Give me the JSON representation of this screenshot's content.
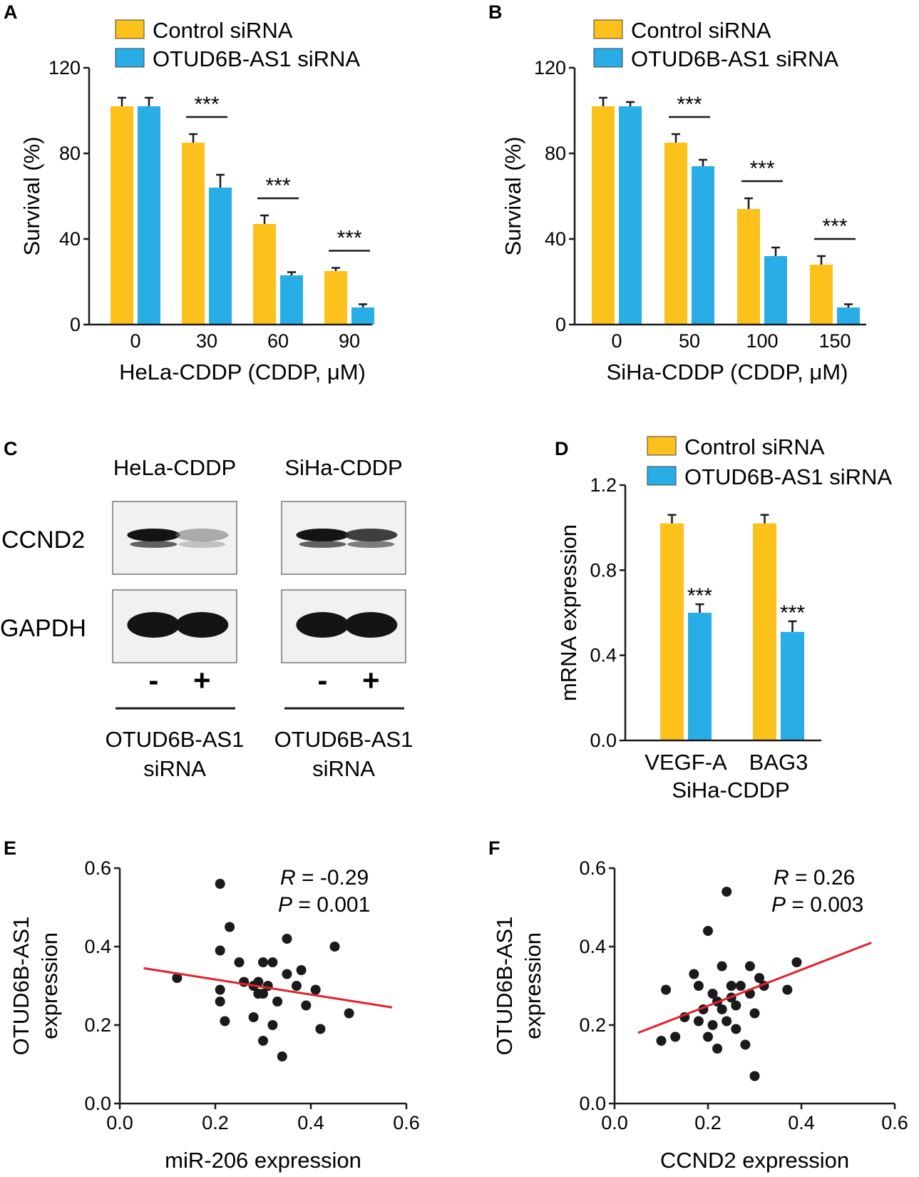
{
  "colors": {
    "control": "#fcc11a",
    "knockdown": "#28ade6",
    "fit_line": "#e3212c",
    "point": "#1a1a1a"
  },
  "chart_data": [
    {
      "panel": "A",
      "type": "bar",
      "categories": [
        "0",
        "30",
        "60",
        "90"
      ],
      "series": [
        {
          "name": "Control siRNA",
          "values": [
            102,
            85,
            47,
            25
          ],
          "errors": [
            4,
            4,
            4,
            1.5
          ]
        },
        {
          "name": "OTUD6B-AS1 siRNA",
          "values": [
            102,
            64,
            23,
            8
          ],
          "errors": [
            4,
            6,
            1.5,
            1.5
          ]
        }
      ],
      "significance": [
        "",
        "***",
        "***",
        "***"
      ],
      "xlabel": "HeLa-CDDP (CDDP, μM)",
      "ylabel": "Survival (%)",
      "ylim": [
        0,
        120
      ],
      "yticks": [
        "0",
        "40",
        "80",
        "120"
      ]
    },
    {
      "panel": "B",
      "type": "bar",
      "categories": [
        "0",
        "50",
        "100",
        "150"
      ],
      "series": [
        {
          "name": "Control siRNA",
          "values": [
            102,
            85,
            54,
            28
          ],
          "errors": [
            4,
            4,
            5,
            4
          ]
        },
        {
          "name": "OTUD6B-AS1 siRNA",
          "values": [
            102,
            74,
            32,
            8
          ],
          "errors": [
            2,
            3,
            4,
            1.5
          ]
        }
      ],
      "significance": [
        "",
        "***",
        "***",
        "***"
      ],
      "xlabel": "SiHa-CDDP (CDDP, μM)",
      "ylabel": "Survival (%)",
      "ylim": [
        0,
        120
      ],
      "yticks": [
        "0",
        "40",
        "80",
        "120"
      ]
    },
    {
      "panel": "D",
      "type": "bar",
      "categories": [
        "VEGF-A",
        "BAG3"
      ],
      "series": [
        {
          "name": "Control siRNA",
          "values": [
            1.02,
            1.02
          ],
          "errors": [
            0.04,
            0.04
          ]
        },
        {
          "name": "OTUD6B-AS1 siRNA",
          "values": [
            0.6,
            0.51
          ],
          "errors": [
            0.04,
            0.05
          ]
        }
      ],
      "significance": [
        "***",
        "***"
      ],
      "xlabel": "SiHa-CDDP",
      "ylabel": "mRNA expression",
      "ylim": [
        0,
        1.2
      ],
      "yticks": [
        "0.0",
        "0.4",
        "0.8",
        "1.2"
      ]
    },
    {
      "panel": "E",
      "type": "scatter",
      "points": [
        [
          0.12,
          0.32
        ],
        [
          0.21,
          0.56
        ],
        [
          0.21,
          0.39
        ],
        [
          0.21,
          0.29
        ],
        [
          0.21,
          0.26
        ],
        [
          0.23,
          0.45
        ],
        [
          0.22,
          0.21
        ],
        [
          0.25,
          0.36
        ],
        [
          0.26,
          0.31
        ],
        [
          0.28,
          0.3
        ],
        [
          0.28,
          0.22
        ],
        [
          0.29,
          0.28
        ],
        [
          0.29,
          0.31
        ],
        [
          0.3,
          0.36
        ],
        [
          0.3,
          0.28
        ],
        [
          0.3,
          0.16
        ],
        [
          0.31,
          0.3
        ],
        [
          0.32,
          0.2
        ],
        [
          0.32,
          0.36
        ],
        [
          0.33,
          0.26
        ],
        [
          0.34,
          0.12
        ],
        [
          0.35,
          0.42
        ],
        [
          0.35,
          0.33
        ],
        [
          0.37,
          0.3
        ],
        [
          0.38,
          0.34
        ],
        [
          0.39,
          0.25
        ],
        [
          0.41,
          0.29
        ],
        [
          0.42,
          0.19
        ],
        [
          0.45,
          0.4
        ],
        [
          0.48,
          0.23
        ]
      ],
      "fit": {
        "x": [
          0.05,
          0.57
        ],
        "y": [
          0.345,
          0.245
        ]
      },
      "annotation": {
        "r_label": "R",
        "r_value": " = -0.29",
        "p_label": "P",
        "p_value": " = 0.001"
      },
      "xlabel": "miR-206 expression",
      "ylabel_line1": "OTUD6B-AS1",
      "ylabel_line2": "expression",
      "xlim": [
        0,
        0.6
      ],
      "ylim": [
        0,
        0.6
      ],
      "xticks": [
        "0.0",
        "0.2",
        "0.4",
        "0.6"
      ],
      "yticks": [
        "0.0",
        "0.2",
        "0.4",
        "0.6"
      ]
    },
    {
      "panel": "F",
      "type": "scatter",
      "points": [
        [
          0.1,
          0.16
        ],
        [
          0.11,
          0.29
        ],
        [
          0.13,
          0.17
        ],
        [
          0.15,
          0.22
        ],
        [
          0.17,
          0.33
        ],
        [
          0.18,
          0.3
        ],
        [
          0.18,
          0.21
        ],
        [
          0.19,
          0.24
        ],
        [
          0.2,
          0.44
        ],
        [
          0.2,
          0.17
        ],
        [
          0.21,
          0.28
        ],
        [
          0.21,
          0.2
        ],
        [
          0.22,
          0.14
        ],
        [
          0.22,
          0.26
        ],
        [
          0.23,
          0.35
        ],
        [
          0.23,
          0.24
        ],
        [
          0.24,
          0.54
        ],
        [
          0.24,
          0.21
        ],
        [
          0.25,
          0.3
        ],
        [
          0.25,
          0.27
        ],
        [
          0.26,
          0.25
        ],
        [
          0.26,
          0.19
        ],
        [
          0.27,
          0.3
        ],
        [
          0.28,
          0.15
        ],
        [
          0.29,
          0.35
        ],
        [
          0.29,
          0.28
        ],
        [
          0.3,
          0.23
        ],
        [
          0.3,
          0.07
        ],
        [
          0.31,
          0.32
        ],
        [
          0.32,
          0.3
        ],
        [
          0.37,
          0.29
        ],
        [
          0.39,
          0.36
        ]
      ],
      "fit": {
        "x": [
          0.05,
          0.55
        ],
        "y": [
          0.18,
          0.41
        ]
      },
      "annotation": {
        "r_label": "R",
        "r_value": " = 0.26",
        "p_label": "P",
        "p_value": " = 0.003"
      },
      "xlabel": "CCND2 expression",
      "ylabel_line1": "OTUD6B-AS1",
      "ylabel_line2": "expression",
      "xlim": [
        0,
        0.6
      ],
      "ylim": [
        0,
        0.6
      ],
      "xticks": [
        "0.0",
        "0.2",
        "0.4",
        "0.6"
      ],
      "yticks": [
        "0.0",
        "0.2",
        "0.4",
        "0.6"
      ]
    }
  ],
  "western_blot": {
    "panel": "C",
    "groups": [
      {
        "title": "HeLa-CDDP",
        "signs": [
          "-",
          "+"
        ],
        "label_line1": "OTUD6B-AS1",
        "label_line2": "siRNA"
      },
      {
        "title": "SiHa-CDDP",
        "signs": [
          "-",
          "+"
        ],
        "label_line1": "OTUD6B-AS1",
        "label_line2": "siRNA"
      }
    ],
    "rows": [
      "CCND2",
      "GAPDH"
    ],
    "band_intensity": {
      "CCND2": [
        [
          1.0,
          0.35
        ],
        [
          1.0,
          0.85
        ]
      ],
      "GAPDH": [
        [
          1.0,
          1.0
        ],
        [
          1.0,
          1.0
        ]
      ]
    }
  }
}
